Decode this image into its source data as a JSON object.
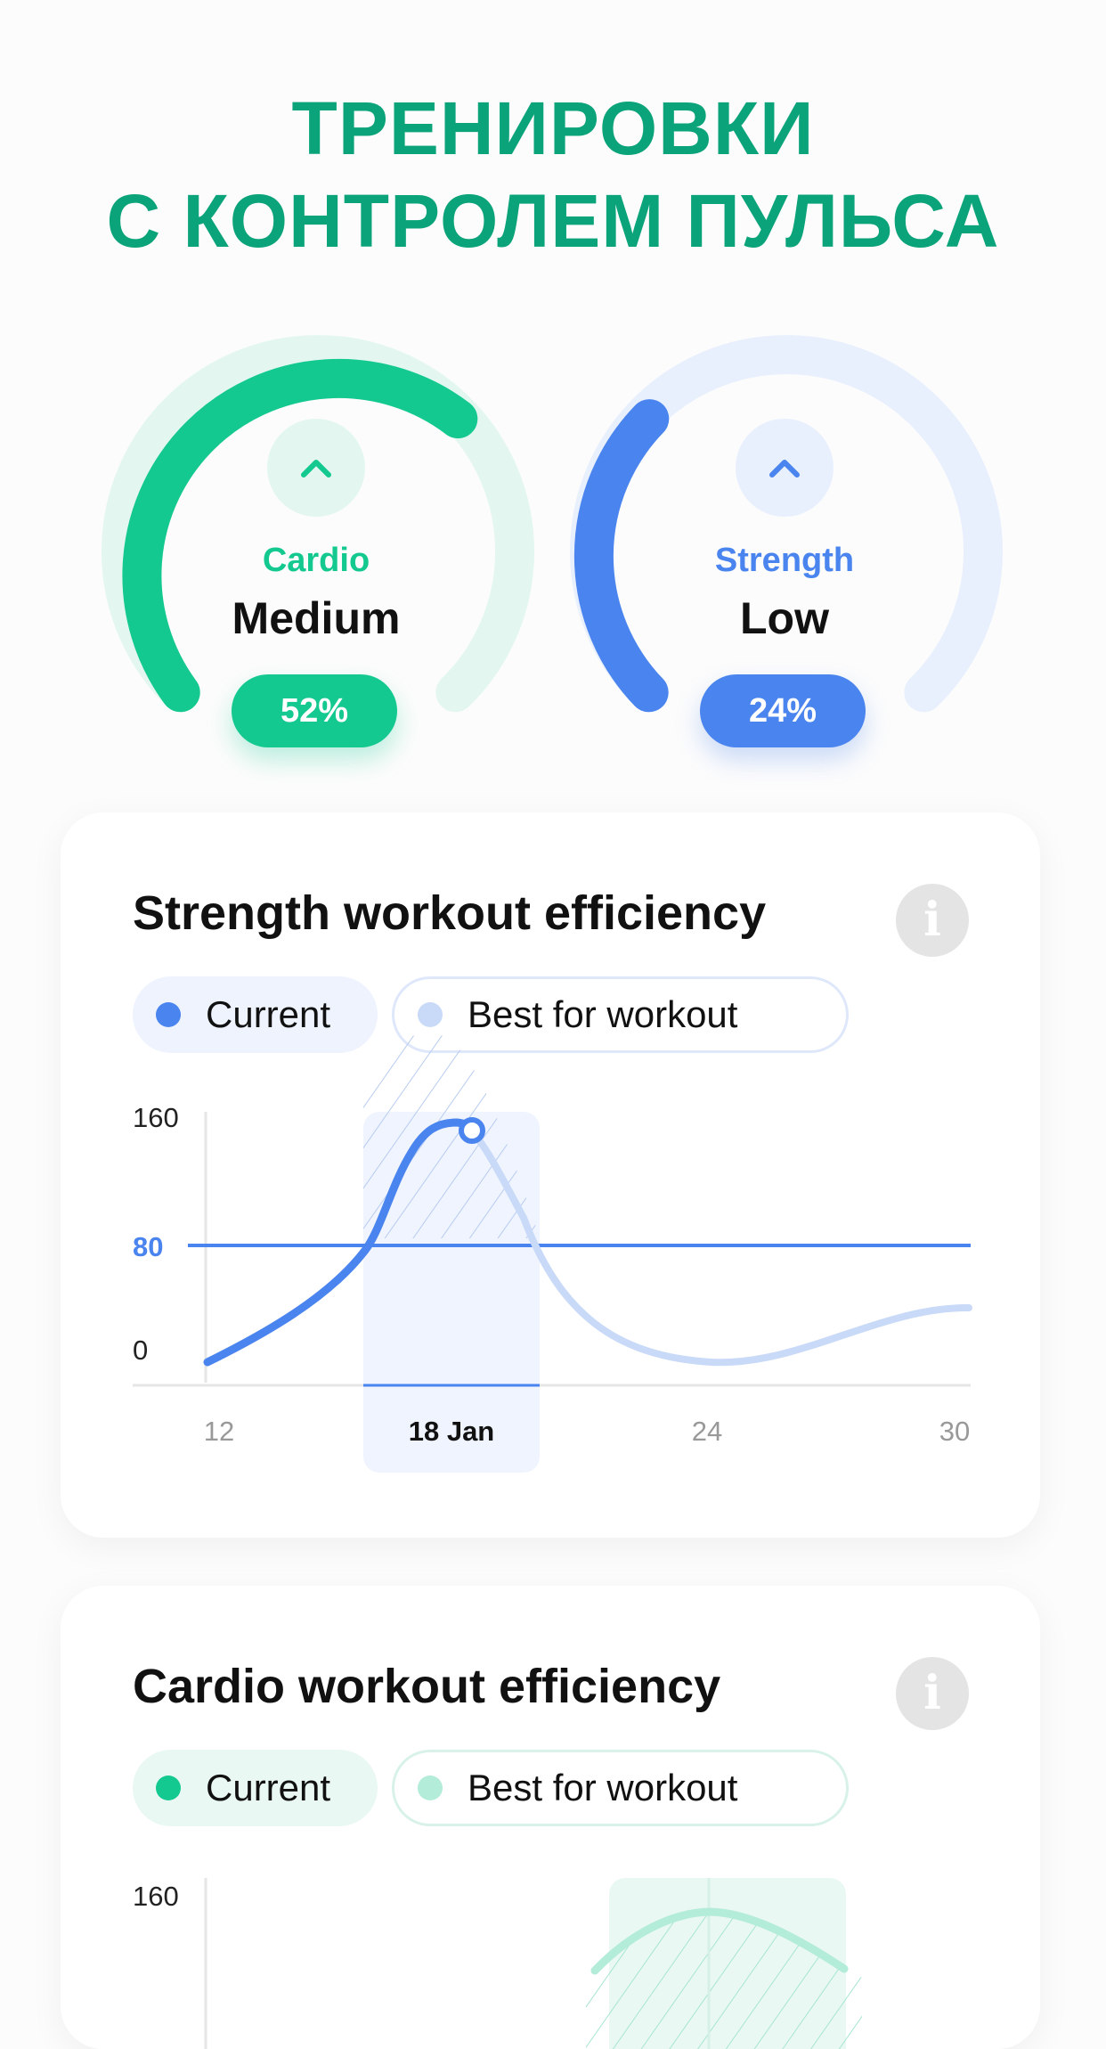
{
  "headline": {
    "line1": "ТРЕНИРОВКИ",
    "line2": "С КОНТРОЛЕМ ПУЛЬСА"
  },
  "colors": {
    "brand_green": "#0aa37a",
    "cardio_green": "#13c98f",
    "strength_blue": "#4a84ee",
    "best_blue": "#c9daf8",
    "best_green": "#b3ecd8"
  },
  "gauges": [
    {
      "label": "Cardio",
      "level": "Medium",
      "percent_text": "52%",
      "value": 0.52,
      "icon": "chevron-up-icon"
    },
    {
      "label": "Strength",
      "level": "Low",
      "percent_text": "24%",
      "value": 0.24,
      "icon": "chevron-up-icon"
    }
  ],
  "strength_card": {
    "title": "Strength workout efficiency",
    "info_icon": "info-icon",
    "legend": {
      "current": "Current",
      "best": "Best for workout"
    }
  },
  "cardio_card": {
    "title": "Cardio workout efficiency",
    "info_icon": "info-icon",
    "legend": {
      "current": "Current",
      "best": "Best for workout"
    }
  },
  "chart_data": [
    {
      "type": "line",
      "title": "Strength workout efficiency",
      "y_ticks": [
        "160",
        "80",
        "0"
      ],
      "x_ticks": [
        "12",
        "18 Jan",
        "24",
        "30"
      ],
      "highlight_label": "18 Jan",
      "threshold": 80,
      "ylim": [
        0,
        160
      ],
      "series": [
        {
          "name": "Current",
          "x": [
            12,
            13,
            14,
            15,
            16,
            17,
            18,
            18.4
          ],
          "y": [
            -5,
            10,
            25,
            45,
            80,
            135,
            160,
            155
          ]
        },
        {
          "name": "Best for workout",
          "x": [
            18.4,
            19,
            20,
            21,
            22,
            24,
            26,
            28,
            30
          ],
          "y": [
            155,
            140,
            80,
            40,
            15,
            0,
            5,
            20,
            30
          ]
        }
      ]
    },
    {
      "type": "line",
      "title": "Cardio workout efficiency",
      "y_ticks": [
        "160"
      ],
      "ylim": [
        0,
        160
      ]
    }
  ]
}
